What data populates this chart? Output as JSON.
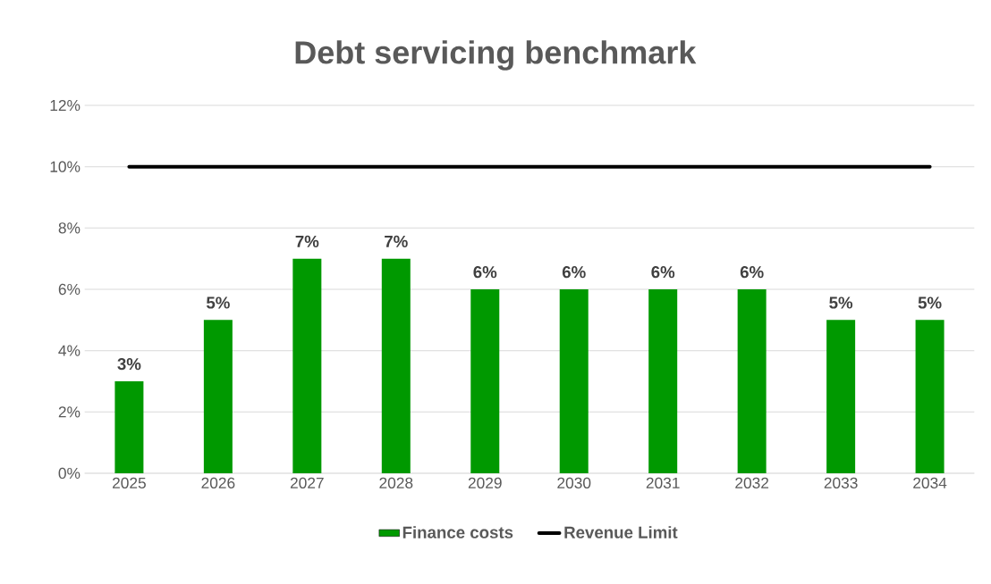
{
  "chart_data": {
    "type": "bar",
    "title": "Debt servicing benchmark",
    "categories": [
      "2025",
      "2026",
      "2027",
      "2028",
      "2029",
      "2030",
      "2031",
      "2032",
      "2033",
      "2034"
    ],
    "series": [
      {
        "name": "Finance costs",
        "color": "#009900",
        "values": [
          3,
          5,
          7,
          7,
          6,
          6,
          6,
          6,
          5,
          5
        ],
        "value_labels": [
          "3%",
          "5%",
          "7%",
          "7%",
          "6%",
          "6%",
          "6%",
          "6%",
          "5%",
          "5%"
        ]
      },
      {
        "name": "Revenue Limit",
        "type": "line",
        "color": "#000000",
        "values": [
          10,
          10,
          10,
          10,
          10,
          10,
          10,
          10,
          10,
          10
        ]
      }
    ],
    "ylim": [
      0,
      12
    ],
    "yticks": [
      {
        "value": 0,
        "label": "0%"
      },
      {
        "value": 2,
        "label": "2%"
      },
      {
        "value": 4,
        "label": "4%"
      },
      {
        "value": 6,
        "label": "6%"
      },
      {
        "value": 8,
        "label": "8%"
      },
      {
        "value": 10,
        "label": "10%"
      },
      {
        "value": 12,
        "label": "12%"
      }
    ],
    "grid": "y",
    "legend": "bottom"
  }
}
